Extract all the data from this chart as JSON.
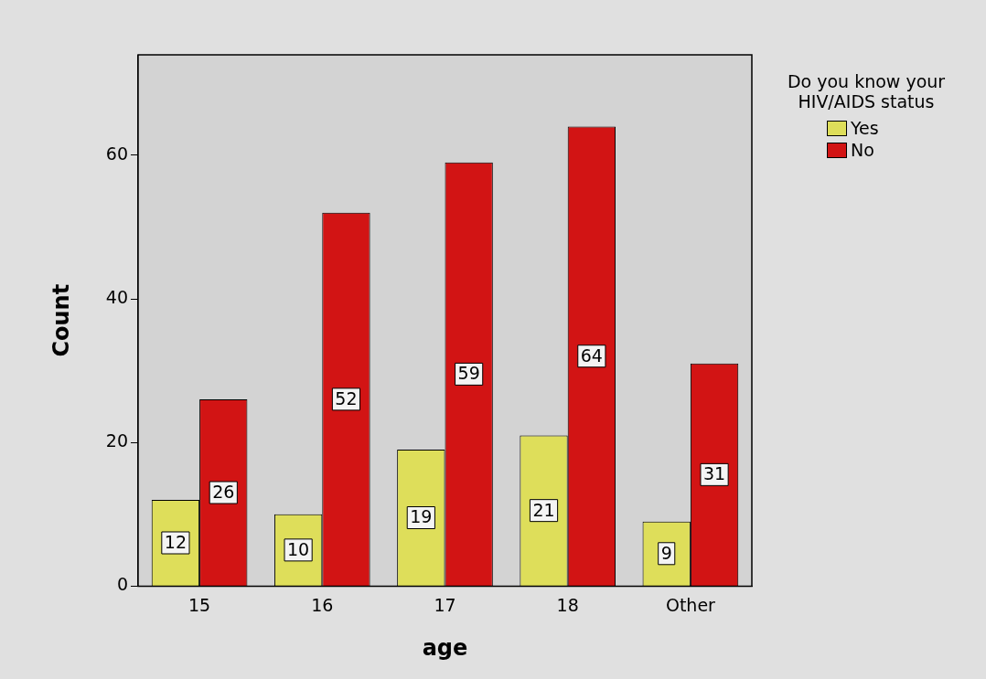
{
  "chart_data": {
    "type": "bar",
    "xlabel": "age",
    "ylabel": "Count",
    "legend_title": "Do you know your HIV/AIDS status",
    "categories": [
      "15",
      "16",
      "17",
      "18",
      "Other"
    ],
    "series": [
      {
        "name": "Yes",
        "color": "#dede5a",
        "values": [
          12,
          10,
          19,
          21,
          9
        ]
      },
      {
        "name": "No",
        "color": "#d21414",
        "values": [
          26,
          52,
          59,
          64,
          31
        ]
      }
    ],
    "ylim": [
      0,
      74
    ],
    "yticks": [
      0,
      20,
      40,
      60
    ],
    "grid": false,
    "legend": "right",
    "data_labels": true
  }
}
